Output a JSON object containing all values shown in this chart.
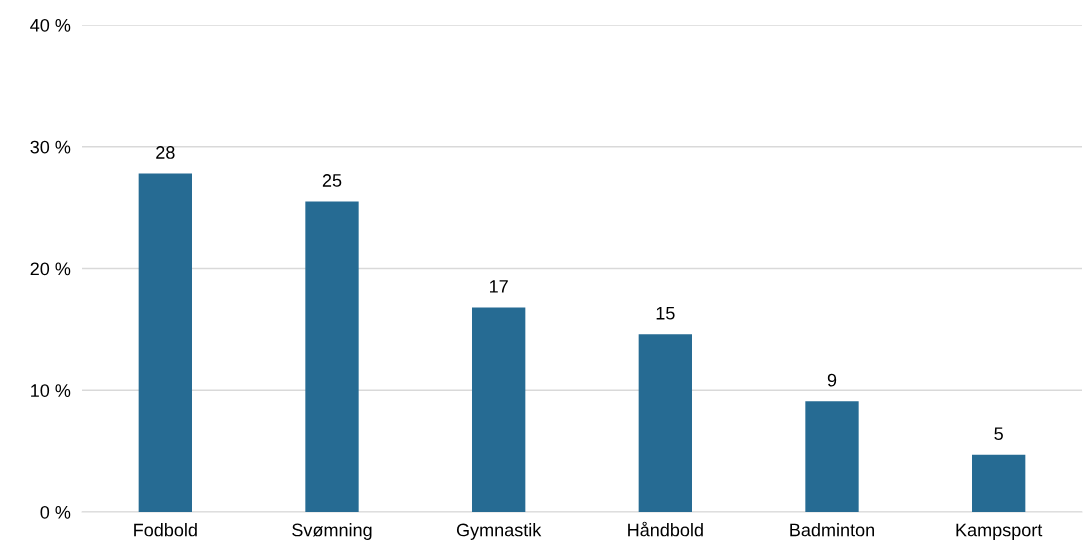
{
  "chart_data": {
    "type": "bar",
    "categories": [
      "Fodbold",
      "Svømning",
      "Gymnastik",
      "Håndbold",
      "Badminton",
      "Kampsport"
    ],
    "values": [
      27.8,
      25.5,
      16.8,
      14.6,
      9.1,
      4.7
    ],
    "value_labels": [
      "28",
      "25",
      "17",
      "15",
      "9",
      "5"
    ],
    "color": "#266b93",
    "ylim": [
      0,
      40
    ],
    "yticks": [
      {
        "value": 0,
        "label": "0 %"
      },
      {
        "value": 10,
        "label": "10 %"
      },
      {
        "value": 20,
        "label": "20 %"
      },
      {
        "value": 30,
        "label": "30 %"
      },
      {
        "value": 40,
        "label": "40 %"
      }
    ],
    "grid": "y",
    "legend": false
  }
}
